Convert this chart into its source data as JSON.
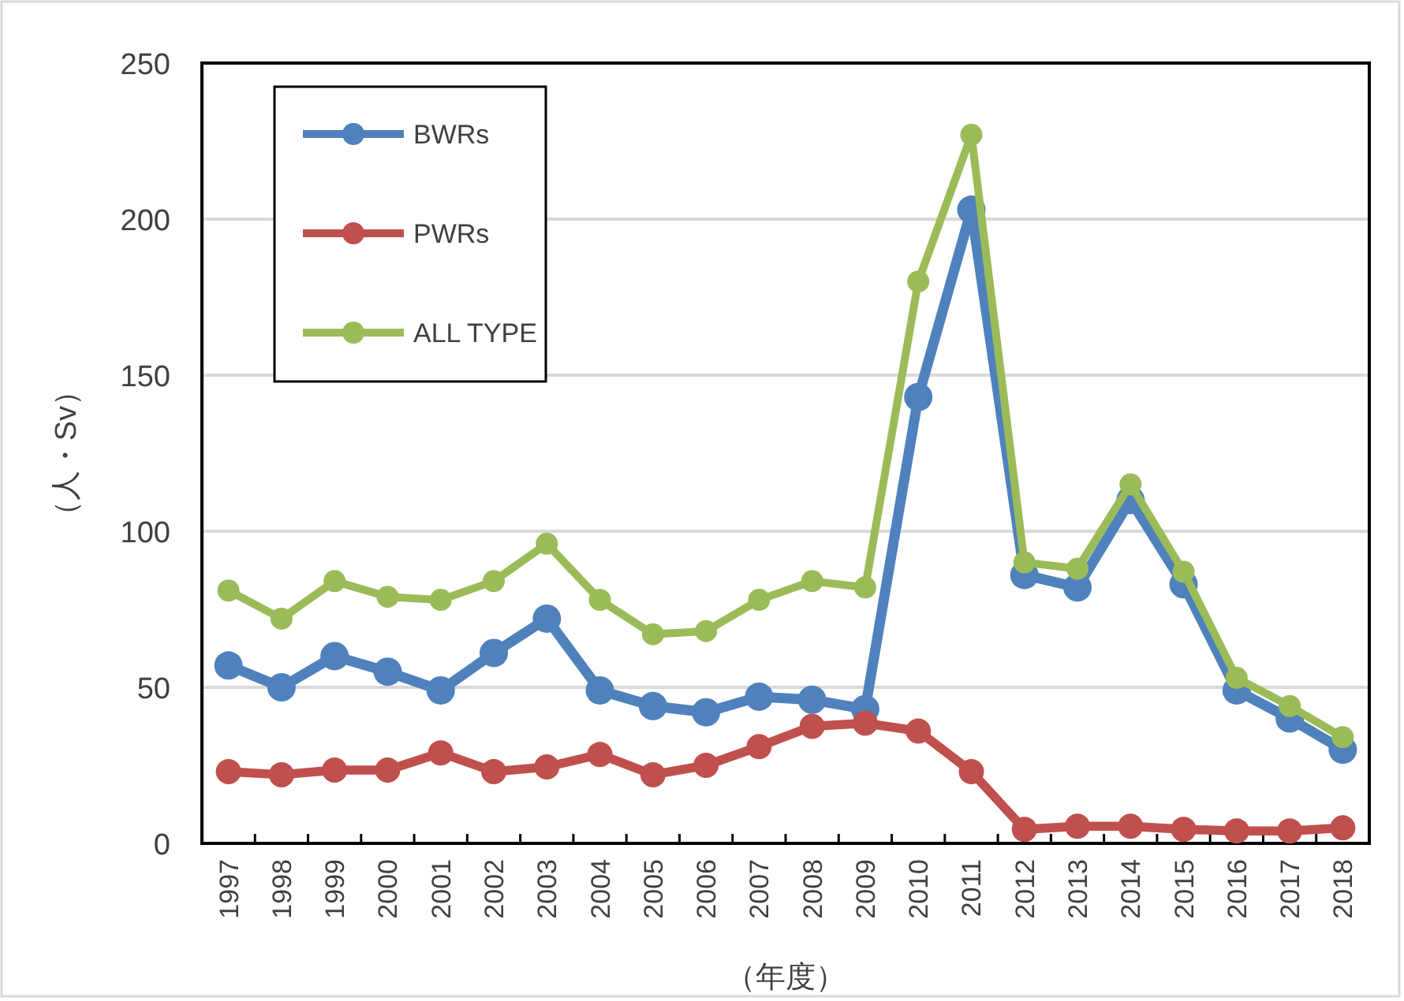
{
  "chart_data": {
    "type": "line",
    "xlabel": "（年度）",
    "ylabel": "（人・Sv）",
    "categories": [
      "1997",
      "1998",
      "1999",
      "2000",
      "2001",
      "2002",
      "2003",
      "2004",
      "2005",
      "2006",
      "2007",
      "2008",
      "2009",
      "2010",
      "2011",
      "2012",
      "2013",
      "2014",
      "2015",
      "2016",
      "2017",
      "2018"
    ],
    "series": [
      {
        "name": "BWRs",
        "color": "#4f81bd",
        "values": [
          57,
          50,
          60,
          55,
          49,
          61,
          72,
          49,
          44,
          42,
          47,
          46,
          43,
          143,
          203,
          86,
          82,
          110,
          83,
          49,
          40,
          30
        ]
      },
      {
        "name": "PWRs",
        "color": "#c0504d",
        "values": [
          23,
          22,
          23.5,
          23.5,
          29,
          23,
          24.5,
          28.5,
          22,
          25,
          31,
          37.5,
          38.5,
          36,
          23,
          4.5,
          5.5,
          5.5,
          4.5,
          4,
          4,
          5
        ]
      },
      {
        "name": "ALL TYPE",
        "color": "#9bbb59",
        "values": [
          81,
          72,
          84,
          79,
          78,
          84,
          96,
          78,
          67,
          68,
          78,
          84,
          82,
          180,
          227,
          90,
          88,
          115,
          87,
          53,
          44,
          34
        ]
      }
    ],
    "ylim": [
      0,
      250
    ],
    "yticks": [
      0,
      50,
      100,
      150,
      200,
      250
    ],
    "grid": "y",
    "legend": "top left",
    "marker": "circle",
    "line_style": "solid"
  }
}
